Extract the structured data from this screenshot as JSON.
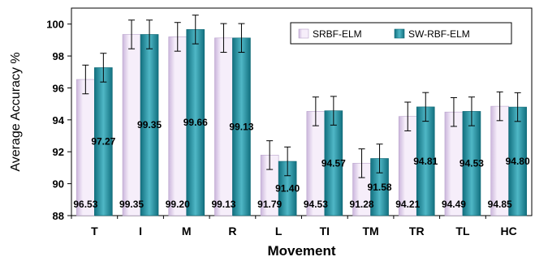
{
  "chart_data": {
    "type": "bar",
    "title": "",
    "xlabel": "Movement",
    "ylabel": "Average Accuracy %",
    "ylim": [
      88,
      101
    ],
    "yticks": [
      88,
      90,
      92,
      94,
      96,
      98,
      100
    ],
    "grid": false,
    "legend_position": "top-right",
    "categories": [
      "T",
      "I",
      "M",
      "R",
      "L",
      "TI",
      "TM",
      "TR",
      "TL",
      "HC"
    ],
    "series": [
      {
        "name": "SRBF-ELM",
        "values": [
          96.53,
          99.35,
          99.2,
          99.13,
          91.79,
          94.53,
          91.28,
          94.21,
          94.49,
          94.85
        ],
        "labels": [
          "96.53",
          "99.35",
          "99.20",
          "99.13",
          "91.79",
          "94.53",
          "91.28",
          "94.21",
          "94.49",
          "94.85"
        ],
        "error": [
          0.9,
          0.9,
          0.9,
          0.9,
          0.9,
          0.9,
          0.9,
          0.9,
          0.9,
          0.9
        ],
        "color_light": "#f6eefa",
        "color_dark": "#cbb6dc"
      },
      {
        "name": "SW-RBF-ELM",
        "values": [
          97.27,
          99.35,
          99.66,
          99.13,
          91.4,
          94.57,
          91.58,
          94.81,
          94.53,
          94.8
        ],
        "labels": [
          "97.27",
          "99.35",
          "99.66",
          "99.13",
          "91.40",
          "94.57",
          "91.58",
          "94.81",
          "94.53",
          "94.80"
        ],
        "error": [
          0.9,
          0.9,
          0.9,
          0.9,
          0.9,
          0.9,
          0.9,
          0.9,
          0.9,
          0.9
        ],
        "color_light": "#4fb7c6",
        "color_dark": "#12707f"
      }
    ]
  }
}
